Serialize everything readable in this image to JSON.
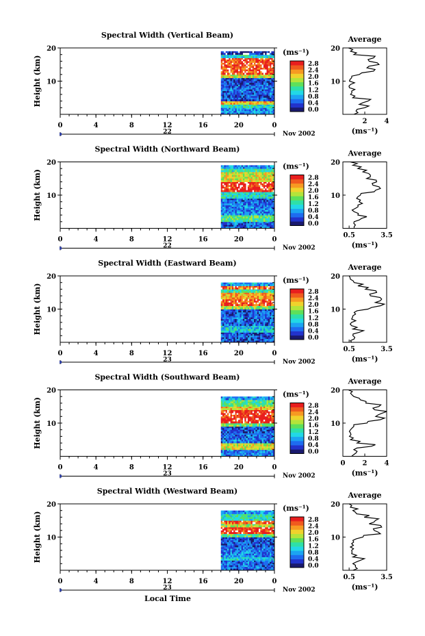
{
  "colors": {
    "scale": [
      "#1a1a6e",
      "#2233cc",
      "#1e6cf0",
      "#1ca4f2",
      "#22d8e6",
      "#2ee0a8",
      "#5ee05a",
      "#b4e43a",
      "#f0d22c",
      "#f79a22",
      "#f05a1e",
      "#e81e1e"
    ],
    "missing": "#ffffff",
    "axis": "#000000",
    "mark_strip": "#1a1a6e"
  },
  "common": {
    "height_ylabel": "Height (km)",
    "height_ticks": [
      "20",
      "10"
    ],
    "time_ticks": [
      "0",
      "4",
      "8",
      "12",
      "16",
      "20",
      "0"
    ],
    "date_label": "Nov 2002",
    "colorbar_unit": "(ms⁻¹)",
    "colorbar_ticks": [
      "2.8",
      "2.4",
      "2.0",
      "1.6",
      "1.2",
      "0.8",
      "0.4",
      "0.0"
    ],
    "avg_title": "Average",
    "avg_xlabel": "(ms⁻¹)",
    "xlabel": "Local Time"
  },
  "chart_data": [
    {
      "type": "heatmap",
      "title": "Spectral Width (Vertical Beam)",
      "day_label": "22",
      "data_start_hour": 18,
      "data_end_hour": 24,
      "ylim": [
        0,
        20
      ],
      "color_range": [
        0.0,
        3.0
      ],
      "layers": [
        {
          "h": [
            0,
            2
          ],
          "v": 0.8
        },
        {
          "h": [
            2,
            3
          ],
          "v": 1.3
        },
        {
          "h": [
            3,
            4
          ],
          "v": 2.2
        },
        {
          "h": [
            4,
            6
          ],
          "v": 0.5
        },
        {
          "h": [
            6,
            9
          ],
          "v": 0.6
        },
        {
          "h": [
            9,
            11
          ],
          "v": 0.4
        },
        {
          "h": [
            11,
            12
          ],
          "v": 2.0
        },
        {
          "h": [
            12,
            17
          ],
          "v": 2.7
        },
        {
          "h": [
            17,
            18
          ],
          "v": 1.2
        },
        {
          "h": [
            18,
            19
          ],
          "v": 0.3
        }
      ],
      "average": {
        "xlim": [
          0,
          4
        ],
        "xticks": [
          "2",
          "4"
        ],
        "profile": [
          [
            0,
            1.0
          ],
          [
            1,
            1.2
          ],
          [
            2,
            2.0
          ],
          [
            3,
            1.5
          ],
          [
            4,
            2.3
          ],
          [
            5,
            0.9
          ],
          [
            6,
            0.7
          ],
          [
            7,
            0.8
          ],
          [
            8,
            0.6
          ],
          [
            9,
            0.7
          ],
          [
            10,
            0.6
          ],
          [
            11,
            0.8
          ],
          [
            12,
            1.5
          ],
          [
            13,
            2.8
          ],
          [
            14,
            2.2
          ],
          [
            15,
            3.3
          ],
          [
            16,
            2.4
          ],
          [
            17,
            2.8
          ],
          [
            18,
            1.0
          ],
          [
            19,
            0.7
          ],
          [
            20,
            0.5
          ]
        ]
      }
    },
    {
      "type": "heatmap",
      "title": "Spectral Width (Northward Beam)",
      "day_label": "22",
      "data_start_hour": 18,
      "data_end_hour": 24,
      "ylim": [
        0,
        20
      ],
      "color_range": [
        0.0,
        3.0
      ],
      "layers": [
        {
          "h": [
            0,
            2
          ],
          "v": 0.6
        },
        {
          "h": [
            2,
            4
          ],
          "v": 1.5
        },
        {
          "h": [
            4,
            7
          ],
          "v": 0.7
        },
        {
          "h": [
            7,
            9
          ],
          "v": 0.6
        },
        {
          "h": [
            9,
            11
          ],
          "v": 1.3
        },
        {
          "h": [
            11,
            14
          ],
          "v": 2.8
        },
        {
          "h": [
            14,
            17
          ],
          "v": 2.0
        },
        {
          "h": [
            17,
            18
          ],
          "v": 1.4
        },
        {
          "h": [
            18,
            19
          ],
          "v": 0.8
        }
      ],
      "average": {
        "xlim": [
          0,
          3.5
        ],
        "xticks": [
          "0.5",
          "3.5"
        ],
        "profile": [
          [
            0,
            0.9
          ],
          [
            1,
            1.0
          ],
          [
            2,
            0.9
          ],
          [
            3,
            1.5
          ],
          [
            4,
            1.2
          ],
          [
            5,
            0.9
          ],
          [
            6,
            1.0
          ],
          [
            7,
            1.2
          ],
          [
            8,
            1.3
          ],
          [
            9,
            1.1
          ],
          [
            10,
            1.4
          ],
          [
            11,
            2.5
          ],
          [
            12,
            3.0
          ],
          [
            13,
            2.4
          ],
          [
            14,
            2.7
          ],
          [
            15,
            1.9
          ],
          [
            16,
            2.2
          ],
          [
            17,
            1.6
          ],
          [
            18,
            1.2
          ],
          [
            19,
            0.8
          ],
          [
            20,
            0.6
          ]
        ]
      }
    },
    {
      "type": "heatmap",
      "title": "Spectral Width (Eastward Beam)",
      "day_label": "23",
      "data_start_hour": 18,
      "data_end_hour": 24,
      "ylim": [
        0,
        20
      ],
      "color_range": [
        0.0,
        3.0
      ],
      "layers": [
        {
          "h": [
            0,
            3
          ],
          "v": 0.5
        },
        {
          "h": [
            3,
            5
          ],
          "v": 1.1
        },
        {
          "h": [
            5,
            8
          ],
          "v": 0.6
        },
        {
          "h": [
            8,
            10
          ],
          "v": 0.5
        },
        {
          "h": [
            10,
            11
          ],
          "v": 1.8
        },
        {
          "h": [
            11,
            13
          ],
          "v": 2.7
        },
        {
          "h": [
            13,
            15
          ],
          "v": 2.3
        },
        {
          "h": [
            15,
            16
          ],
          "v": 1.4
        },
        {
          "h": [
            16,
            17
          ],
          "v": 2.5
        },
        {
          "h": [
            17,
            18
          ],
          "v": 0.9
        }
      ],
      "average": {
        "xlim": [
          0,
          3.5
        ],
        "xticks": [
          "0.5",
          "3.5"
        ],
        "profile": [
          [
            0,
            0.7
          ],
          [
            1,
            0.9
          ],
          [
            2,
            0.8
          ],
          [
            3,
            1.3
          ],
          [
            4,
            0.8
          ],
          [
            5,
            0.7
          ],
          [
            6,
            0.7
          ],
          [
            7,
            0.7
          ],
          [
            8,
            0.8
          ],
          [
            9,
            0.9
          ],
          [
            10,
            2.0
          ],
          [
            11,
            3.0
          ],
          [
            12,
            2.6
          ],
          [
            13,
            3.1
          ],
          [
            14,
            2.2
          ],
          [
            15,
            2.7
          ],
          [
            16,
            1.8
          ],
          [
            17,
            1.2
          ],
          [
            18,
            0.9
          ],
          [
            19,
            0.6
          ],
          [
            20,
            0.5
          ]
        ]
      }
    },
    {
      "type": "heatmap",
      "title": "Spectral Width (Southward Beam)",
      "day_label": "23",
      "data_start_hour": 18,
      "data_end_hour": 24,
      "ylim": [
        0,
        20
      ],
      "color_range": [
        0.0,
        3.0
      ],
      "layers": [
        {
          "h": [
            0,
            2
          ],
          "v": 0.7
        },
        {
          "h": [
            2,
            4
          ],
          "v": 2.0
        },
        {
          "h": [
            4,
            7
          ],
          "v": 0.6
        },
        {
          "h": [
            7,
            9
          ],
          "v": 0.5
        },
        {
          "h": [
            9,
            10
          ],
          "v": 1.6
        },
        {
          "h": [
            10,
            14
          ],
          "v": 2.9
        },
        {
          "h": [
            14,
            15
          ],
          "v": 2.2
        },
        {
          "h": [
            15,
            17
          ],
          "v": 1.5
        },
        {
          "h": [
            17,
            18
          ],
          "v": 0.9
        }
      ],
      "average": {
        "xlim": [
          0,
          4
        ],
        "xticks": [
          "0",
          "2",
          "4"
        ],
        "profile": [
          [
            0,
            0.8
          ],
          [
            1,
            1.2
          ],
          [
            2,
            1.0
          ],
          [
            3,
            2.6
          ],
          [
            4,
            1.3
          ],
          [
            5,
            0.7
          ],
          [
            6,
            0.6
          ],
          [
            7,
            0.7
          ],
          [
            8,
            0.7
          ],
          [
            9,
            1.0
          ],
          [
            10,
            2.2
          ],
          [
            11,
            3.4
          ],
          [
            12,
            3.0
          ],
          [
            13,
            3.6
          ],
          [
            14,
            2.9
          ],
          [
            15,
            3.3
          ],
          [
            16,
            2.1
          ],
          [
            17,
            1.6
          ],
          [
            18,
            1.0
          ],
          [
            19,
            0.7
          ],
          [
            20,
            0.5
          ]
        ]
      }
    },
    {
      "type": "heatmap",
      "title": "Spectral Width (Westward Beam)",
      "day_label": "23",
      "data_start_hour": 18,
      "data_end_hour": 24,
      "ylim": [
        0,
        20
      ],
      "color_range": [
        0.0,
        3.0
      ],
      "layers": [
        {
          "h": [
            0,
            3
          ],
          "v": 0.6
        },
        {
          "h": [
            3,
            4
          ],
          "v": 1.1
        },
        {
          "h": [
            4,
            7
          ],
          "v": 0.7
        },
        {
          "h": [
            7,
            10
          ],
          "v": 0.5
        },
        {
          "h": [
            10,
            11
          ],
          "v": 1.5
        },
        {
          "h": [
            11,
            13
          ],
          "v": 2.8
        },
        {
          "h": [
            13,
            14
          ],
          "v": 1.9
        },
        {
          "h": [
            14,
            15
          ],
          "v": 2.6
        },
        {
          "h": [
            15,
            17
          ],
          "v": 1.3
        },
        {
          "h": [
            17,
            18
          ],
          "v": 0.8
        }
      ],
      "average": {
        "xlim": [
          0,
          3.5
        ],
        "xticks": [
          "0.5",
          "3.5"
        ],
        "profile": [
          [
            0,
            0.8
          ],
          [
            1,
            1.0
          ],
          [
            2,
            0.8
          ],
          [
            3,
            1.4
          ],
          [
            4,
            0.8
          ],
          [
            5,
            0.7
          ],
          [
            6,
            0.7
          ],
          [
            7,
            0.6
          ],
          [
            8,
            0.7
          ],
          [
            9,
            0.8
          ],
          [
            10,
            1.6
          ],
          [
            11,
            3.0
          ],
          [
            12,
            2.5
          ],
          [
            13,
            3.1
          ],
          [
            14,
            2.1
          ],
          [
            15,
            2.6
          ],
          [
            16,
            1.7
          ],
          [
            17,
            1.1
          ],
          [
            18,
            0.8
          ],
          [
            19,
            0.6
          ],
          [
            20,
            0.5
          ]
        ]
      }
    }
  ]
}
